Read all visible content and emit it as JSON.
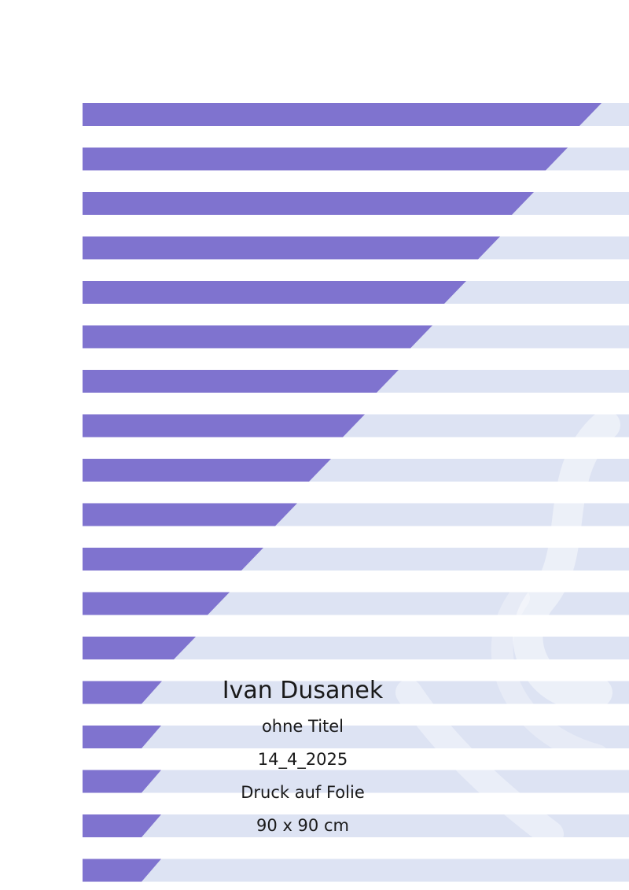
{
  "colors": {
    "stripe_purple": "#7f73cf",
    "stripe_pale": "#dde3f3",
    "background": "#ffffff",
    "text": "#1a1a1a"
  },
  "artwork": {
    "artist": "Ivan Dusanek",
    "title": "ohne Titel",
    "date": "14_4_2025",
    "medium": "Druck auf Folie",
    "dimensions": "90 x 90 cm"
  }
}
